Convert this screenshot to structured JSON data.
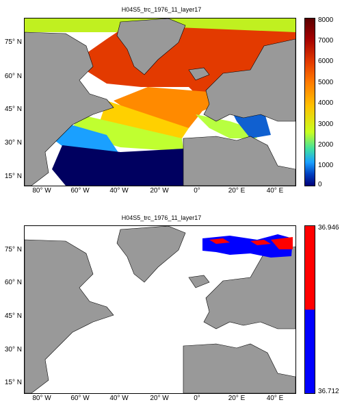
{
  "panels": [
    {
      "id": "top",
      "title": "H04S5_trc_1976_11_layer17",
      "lat_labels": [
        "75° N",
        "60° N",
        "45° N",
        "30° N",
        "15° N"
      ],
      "lon_labels": [
        "80° W",
        "60° W",
        "40° W",
        "20° W",
        "0°",
        "20° E",
        "40° E"
      ],
      "colorbar": {
        "type": "continuous",
        "ticks": [
          "8000",
          "7000",
          "6000",
          "5000",
          "4000",
          "3000",
          "2000",
          "1000",
          "0"
        ],
        "colors": [
          "#5a0000",
          "#a30000",
          "#e33a00",
          "#ff7a00",
          "#ffc000",
          "#c8ff20",
          "#40e0a0",
          "#1aa0ff",
          "#0040c0",
          "#00007a"
        ]
      }
    },
    {
      "id": "bottom",
      "title": "H04S5_trc_1976_11_layer17",
      "lat_labels": [
        "75° N",
        "60° N",
        "45° N",
        "30° N",
        "15° N"
      ],
      "lon_labels": [
        "80° W",
        "60° W",
        "40° W",
        "20° W",
        "0°",
        "20° E",
        "40° E"
      ],
      "colorbar": {
        "type": "binary",
        "top_label": "36.946",
        "bottom_label": "36.712",
        "colors": [
          "#ff0000",
          "#0000ff"
        ]
      }
    }
  ],
  "colors": {
    "land": "#999999",
    "ocean": "#ffffff",
    "coast": "#000000"
  }
}
